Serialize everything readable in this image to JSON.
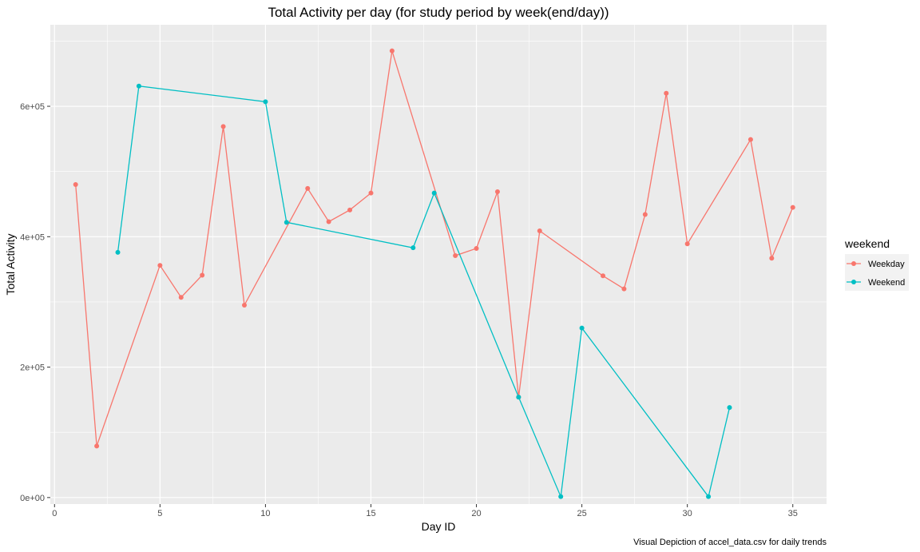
{
  "chart_data": {
    "type": "line",
    "title": "Total Activity per day (for study period by week(end/day))",
    "xlabel": "Day ID",
    "ylabel": "Total Activity",
    "caption": "Visual Depiction of accel_data.csv for daily trends",
    "xlim": [
      -0.2,
      36.6
    ],
    "ylim": [
      -10000,
      725000
    ],
    "x_ticks": [
      0,
      5,
      10,
      15,
      20,
      25,
      30,
      35
    ],
    "x_tick_labels": [
      "0",
      "5",
      "10",
      "15",
      "20",
      "25",
      "30",
      "35"
    ],
    "y_ticks": [
      0,
      200000,
      400000,
      600000
    ],
    "y_tick_labels": [
      "0e+00",
      "2e+05",
      "4e+05",
      "6e+05"
    ],
    "grid": true,
    "legend": {
      "title": "weekend",
      "placement": "right"
    },
    "series": [
      {
        "name": "Weekday",
        "color": "#F8766D",
        "x": [
          1,
          2,
          5,
          6,
          7,
          8,
          9,
          12,
          13,
          14,
          15,
          16,
          19,
          20,
          21,
          22,
          23,
          26,
          27,
          28,
          29,
          30,
          33,
          34,
          35
        ],
        "y": [
          480000,
          79000,
          356000,
          307000,
          341000,
          569000,
          295000,
          474000,
          423000,
          441000,
          467000,
          685000,
          371000,
          382000,
          469000,
          154000,
          409000,
          340000,
          320000,
          434000,
          620000,
          389000,
          549000,
          367000,
          445000
        ]
      },
      {
        "name": "Weekend",
        "color": "#00BFC4",
        "x": [
          3,
          4,
          10,
          11,
          17,
          18,
          22,
          24,
          25,
          31,
          32
        ],
        "y": [
          376000,
          631000,
          607000,
          422000,
          383000,
          467000,
          154000,
          1440,
          260000,
          1440,
          138000
        ]
      }
    ]
  }
}
